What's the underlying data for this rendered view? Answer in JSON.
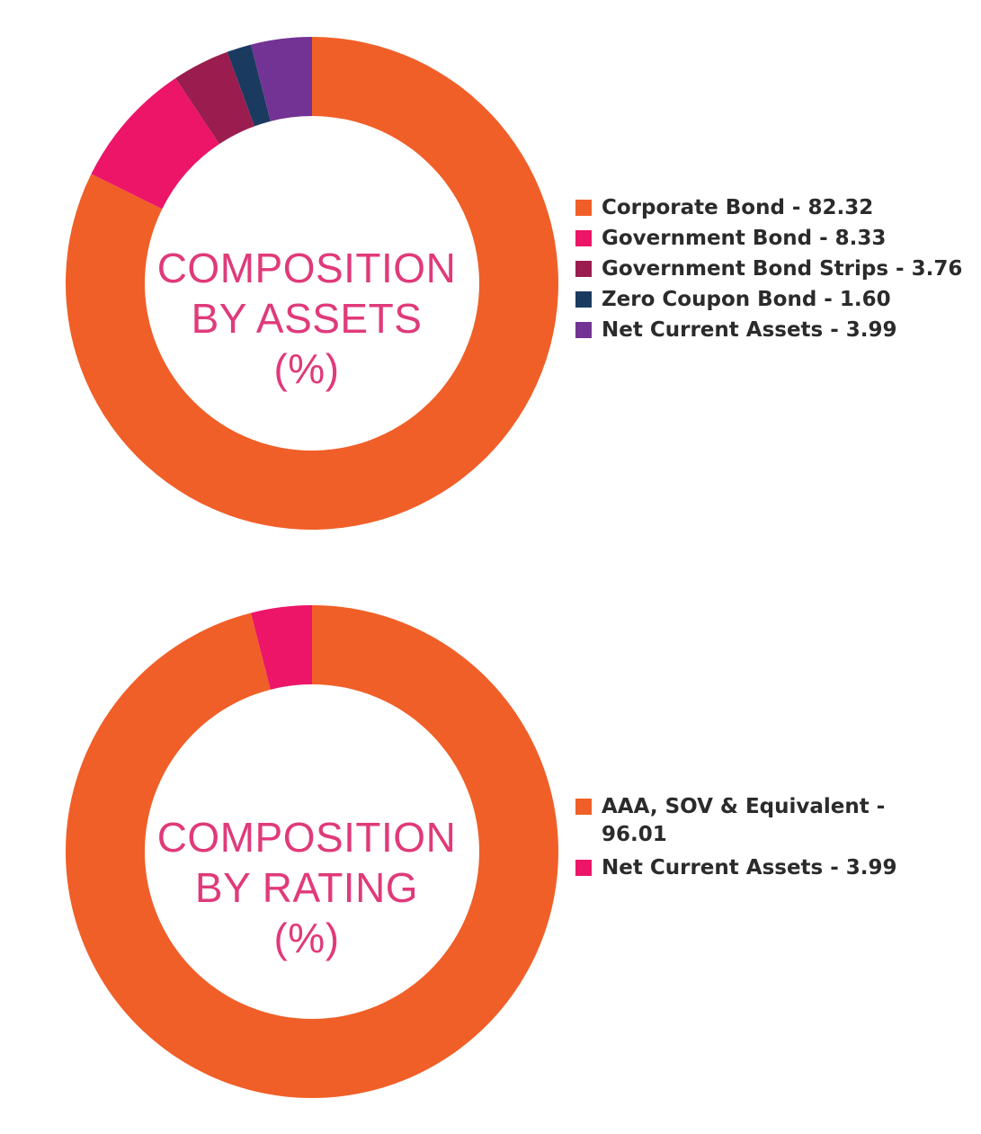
{
  "chart_data": [
    {
      "type": "pie",
      "title": "",
      "center_label": [
        "COMPOSITION",
        "BY ASSETS",
        "(%)"
      ],
      "legend_position": "right",
      "categories": [
        "Corporate Bond",
        "Government Bond",
        "Government Bond Strips",
        "Zero Coupon Bond",
        "Net Current Assets"
      ],
      "values": [
        82.32,
        8.33,
        3.76,
        1.6,
        3.99
      ],
      "legend_labels": [
        "Corporate Bond - 82.32",
        "Government Bond - 8.33",
        "Government Bond Strips - 3.76",
        "Zero Coupon Bond - 1.60",
        "Net Current Assets - 3.99"
      ],
      "colors": [
        "#f05f28",
        "#ec1568",
        "#9b1d4f",
        "#1b3a60",
        "#733394"
      ]
    },
    {
      "type": "pie",
      "title": "",
      "center_label": [
        "COMPOSITION",
        "BY RATING",
        "(%)"
      ],
      "legend_position": "right",
      "categories": [
        "AAA, SOV & Equivalent",
        "Net Current Assets"
      ],
      "values": [
        96.01,
        3.99
      ],
      "legend_labels": [
        "AAA, SOV & Equivalent - 96.01",
        "Net Current Assets - 3.99"
      ],
      "colors": [
        "#f05f28",
        "#ec1568"
      ]
    }
  ],
  "colors": {
    "center_text": "#e03a7a",
    "legend_text": "#2b2b2b"
  }
}
